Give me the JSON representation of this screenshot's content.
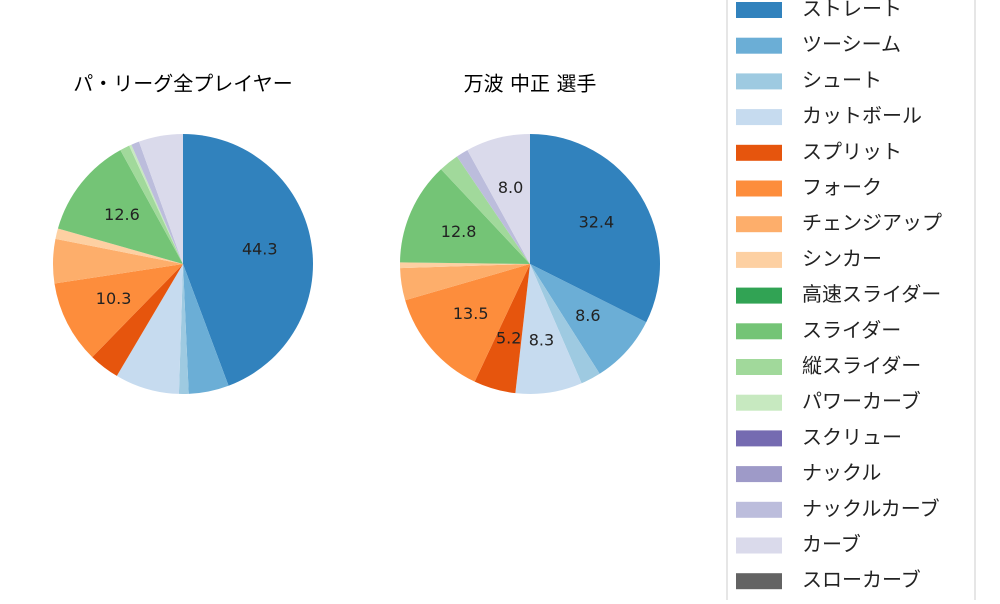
{
  "chart_data": [
    {
      "type": "pie",
      "title": "パ・リーグ全プレイヤー",
      "categories": [
        "ストレート",
        "ツーシーム",
        "シュート",
        "カットボール",
        "スプリット",
        "フォーク",
        "チェンジアップ",
        "シンカー",
        "高速スライダー",
        "スライダー",
        "縦スライダー",
        "パワーカーブ",
        "スクリュー",
        "ナックル",
        "ナックルカーブ",
        "カーブ",
        "スローカーブ"
      ],
      "colors": [
        "#3182bd",
        "#6baed6",
        "#9ecae1",
        "#c6dbef",
        "#e6550d",
        "#fd8d3c",
        "#fdae6b",
        "#fdd0a2",
        "#31a354",
        "#74c476",
        "#a1d99b",
        "#c7e9c0",
        "#756bb1",
        "#9e9ac8",
        "#bcbddc",
        "#dadaeb",
        "#636363"
      ],
      "values": [
        44.3,
        5.0,
        1.2,
        8.0,
        3.8,
        10.3,
        5.5,
        1.3,
        0,
        12.6,
        1.2,
        0.3,
        0,
        0,
        1.0,
        5.5,
        0
      ],
      "value_labels": [
        "44.3",
        null,
        null,
        null,
        null,
        "10.3",
        null,
        null,
        null,
        "12.6",
        null,
        null,
        null,
        null,
        null,
        null,
        null
      ]
    },
    {
      "type": "pie",
      "title": "万波 中正  選手",
      "categories": [
        "ストレート",
        "ツーシーム",
        "シュート",
        "カットボール",
        "スプリット",
        "フォーク",
        "チェンジアップ",
        "シンカー",
        "高速スライダー",
        "スライダー",
        "縦スライダー",
        "パワーカーブ",
        "スクリュー",
        "ナックル",
        "ナックルカーブ",
        "カーブ",
        "スローカーブ"
      ],
      "colors": [
        "#3182bd",
        "#6baed6",
        "#9ecae1",
        "#c6dbef",
        "#e6550d",
        "#fd8d3c",
        "#fdae6b",
        "#fdd0a2",
        "#31a354",
        "#74c476",
        "#a1d99b",
        "#c7e9c0",
        "#756bb1",
        "#9e9ac8",
        "#bcbddc",
        "#dadaeb",
        "#636363"
      ],
      "values": [
        32.4,
        8.6,
        2.5,
        8.3,
        5.2,
        13.5,
        4.0,
        0.7,
        0,
        12.8,
        2.5,
        0,
        0,
        0,
        1.5,
        8.0,
        0
      ],
      "value_labels": [
        "32.4",
        "8.6",
        null,
        "8.3",
        "5.2",
        "13.5",
        null,
        null,
        null,
        "12.8",
        null,
        null,
        null,
        null,
        null,
        "8.0",
        null
      ]
    }
  ]
}
